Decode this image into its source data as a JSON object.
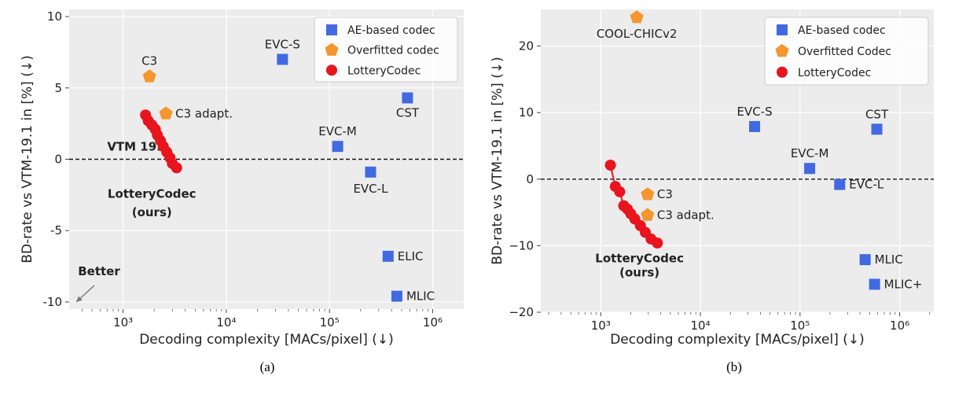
{
  "chart_data": [
    {
      "panel": "a",
      "type": "scatter",
      "caption": "(a)",
      "xlabel": "Decoding complexity [MACs/pixel] (↓)",
      "ylabel": "BD-rate vs VTM-19.1 in [%] (↓)",
      "xscale": "log",
      "xlim": [
        300,
        2000000
      ],
      "ylim": [
        -10.5,
        10.5
      ],
      "xticks": [
        {
          "v": 1000,
          "label": "10³"
        },
        {
          "v": 10000,
          "label": "10⁴"
        },
        {
          "v": 100000,
          "label": "10⁵"
        },
        {
          "v": 1000000,
          "label": "10⁶"
        }
      ],
      "yticks": [
        {
          "v": 10,
          "label": "10"
        },
        {
          "v": 5,
          "label": "5"
        },
        {
          "v": 0,
          "label": "0"
        },
        {
          "v": -5,
          "label": "-5"
        },
        {
          "v": -10,
          "label": "-10"
        }
      ],
      "grid": true,
      "legend_position": "top-right",
      "reference_line": {
        "y": 0,
        "label": "VTM 19.1"
      },
      "better_annotation": "Better",
      "series": [
        {
          "name": "AE-based codec",
          "marker": "square",
          "color": "#4169e1",
          "points": [
            {
              "x": 35000,
              "y": 7.0,
              "label": "EVC-S"
            },
            {
              "x": 570000,
              "y": 4.3,
              "label": "CST"
            },
            {
              "x": 120000,
              "y": 0.9,
              "label": "EVC-M"
            },
            {
              "x": 250000,
              "y": -0.9,
              "label": "EVC-L"
            },
            {
              "x": 370000,
              "y": -6.8,
              "label": "ELIC"
            },
            {
              "x": 450000,
              "y": -9.6,
              "label": "MLIC"
            }
          ]
        },
        {
          "name": "Overfitted codec",
          "marker": "pentagon",
          "color": "#f5962e",
          "points": [
            {
              "x": 1800,
              "y": 5.8,
              "label": "C3"
            },
            {
              "x": 2600,
              "y": 3.2,
              "label": "C3 adapt."
            }
          ]
        },
        {
          "name": "LotteryCodec",
          "marker": "circle",
          "color": "#e8141e",
          "connected": true,
          "label_line1": "LotteryCodec",
          "label_line2": "(ours)",
          "points": [
            {
              "x": 1650,
              "y": 3.1
            },
            {
              "x": 1750,
              "y": 2.7
            },
            {
              "x": 1900,
              "y": 2.4
            },
            {
              "x": 2050,
              "y": 2.1
            },
            {
              "x": 2150,
              "y": 1.7
            },
            {
              "x": 2300,
              "y": 1.3
            },
            {
              "x": 2450,
              "y": 0.9
            },
            {
              "x": 2650,
              "y": 0.5
            },
            {
              "x": 2850,
              "y": 0.1
            },
            {
              "x": 3000,
              "y": -0.3
            },
            {
              "x": 3300,
              "y": -0.6
            }
          ]
        }
      ]
    },
    {
      "panel": "b",
      "type": "scatter",
      "caption": "(b)",
      "xlabel": "Decoding complexity [MACs/pixel] (↓)",
      "ylabel": "BD-rate vs VTM-19.1 in [%] (↓)",
      "xscale": "log",
      "xlim": [
        250,
        2200000
      ],
      "ylim": [
        -20,
        25.5
      ],
      "xticks": [
        {
          "v": 1000,
          "label": "10³"
        },
        {
          "v": 10000,
          "label": "10⁴"
        },
        {
          "v": 100000,
          "label": "10⁵"
        },
        {
          "v": 1000000,
          "label": "10⁶"
        }
      ],
      "yticks": [
        {
          "v": 20,
          "label": "20"
        },
        {
          "v": 10,
          "label": "10"
        },
        {
          "v": 0,
          "label": "0"
        },
        {
          "v": -10,
          "label": "−10"
        },
        {
          "v": -20,
          "label": "−20"
        }
      ],
      "grid": true,
      "legend_position": "top-right",
      "reference_line": {
        "y": 0
      },
      "series": [
        {
          "name": "AE-based codec",
          "marker": "square",
          "color": "#4169e1",
          "points": [
            {
              "x": 35000,
              "y": 7.9,
              "label": "EVC-S"
            },
            {
              "x": 590000,
              "y": 7.5,
              "label": "CST"
            },
            {
              "x": 125000,
              "y": 1.6,
              "label": "EVC-M"
            },
            {
              "x": 250000,
              "y": -0.8,
              "label": "EVC-L"
            },
            {
              "x": 450000,
              "y": -12.1,
              "label": "MLIC"
            },
            {
              "x": 560000,
              "y": -15.8,
              "label": "MLIC+"
            }
          ]
        },
        {
          "name": "Overfitted Codec",
          "marker": "pentagon",
          "color": "#f5962e",
          "points": [
            {
              "x": 2300,
              "y": 24.3,
              "label": "COOL-CHICv2"
            },
            {
              "x": 2950,
              "y": -2.3,
              "label": "C3"
            },
            {
              "x": 2950,
              "y": -5.4,
              "label": "C3 adapt."
            }
          ]
        },
        {
          "name": "LotteryCodec",
          "marker": "circle",
          "color": "#e8141e",
          "connected": true,
          "label_line1": "LotteryCodec",
          "label_line2": "(ours)",
          "points": [
            {
              "x": 1250,
              "y": 2.1
            },
            {
              "x": 1400,
              "y": -1.1
            },
            {
              "x": 1550,
              "y": -1.9
            },
            {
              "x": 1700,
              "y": -4.0
            },
            {
              "x": 1850,
              "y": -4.5
            },
            {
              "x": 2000,
              "y": -5.2
            },
            {
              "x": 2200,
              "y": -6.0
            },
            {
              "x": 2500,
              "y": -7.0
            },
            {
              "x": 2800,
              "y": -8.0
            },
            {
              "x": 3200,
              "y": -9.0
            },
            {
              "x": 3700,
              "y": -9.6
            }
          ]
        }
      ]
    }
  ]
}
